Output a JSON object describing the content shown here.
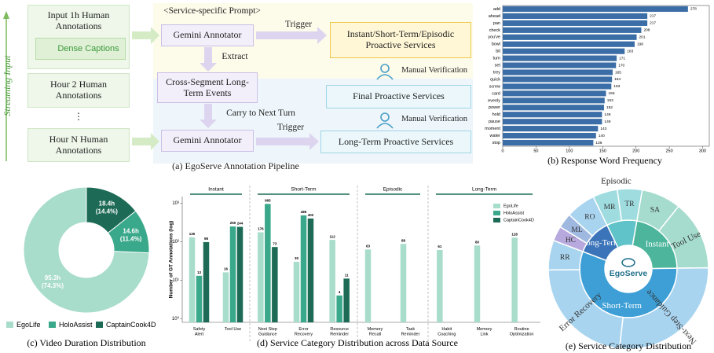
{
  "pipeline": {
    "side_label": "Streaming Input",
    "inputs": [
      "Input 1h Human Annotations",
      "Hour 2 Human Annotations",
      "⋮",
      "Hour N Human Annotations"
    ],
    "dense_captions": "Dense Captions",
    "prompt": "<Service-specific Prompt>",
    "annotator_1": "Gemini Annotator",
    "annotator_2": "Gemini Annotator",
    "trigger_1": "Trigger",
    "trigger_2": "Trigger",
    "extract": "Extract",
    "events": "Cross-Segment Long-Term Events",
    "carry": "Carry to Next Turn",
    "services_1": "Instant/Short-Term/Episodic Proactive Services",
    "verification_1": "Manual Verification",
    "final": "Final Proactive Services",
    "verification_2": "Manual Verification",
    "services_2": "Long-Term Proactive Services",
    "caption": "(a) EgoServe Annotation Pipeline"
  },
  "chart_data": [
    {
      "type": "bar",
      "orientation": "horizontal",
      "caption": "(b) Response Word Frequency",
      "categories": [
        "add",
        "ahead",
        "pan",
        "check",
        "you've",
        "bowl",
        "bit",
        "turn",
        "set",
        "trey",
        "quick",
        "screw",
        "card",
        "evenly",
        "power",
        "hold",
        "pause",
        "moment",
        "water",
        "stop"
      ],
      "values": [
        278,
        217,
        217,
        208,
        201,
        198,
        183,
        171,
        170,
        165,
        164,
        163,
        155,
        153,
        152,
        149,
        149,
        143,
        140,
        136
      ],
      "color": "#3b6ea6",
      "xlim": [
        0,
        310
      ],
      "xticks": [
        0,
        50,
        100,
        150,
        200,
        250,
        300
      ]
    },
    {
      "type": "pie",
      "donut": true,
      "caption": "(c) Video Duration Distribution",
      "categories": [
        "EgoLife",
        "HoloAssist",
        "CaptainCook4D"
      ],
      "values": [
        95.3,
        14.6,
        18.4
      ],
      "value_labels": [
        "95.3h (74.3%)",
        "14.6h (11.4%)",
        "18.4h (14.4%)"
      ],
      "colors": [
        "#a8dccb",
        "#3aa88a",
        "#1d6b56"
      ],
      "legend": "bottom"
    },
    {
      "type": "bar",
      "log_scale": true,
      "caption": "(d) Service Category Distribution across Data Source",
      "ylabel": "Number of GT Annotations (log)",
      "groups": [
        {
          "name": "Instant",
          "categories": [
            "Safety Alert",
            "Tool Use"
          ]
        },
        {
          "name": "Short-Term",
          "categories": [
            "Next Step Guidance",
            "Error Recovery",
            "Resource Reminder"
          ]
        },
        {
          "name": "Episodic",
          "categories": [
            "Memory Recall",
            "Task Reminder"
          ]
        },
        {
          "name": "Long-Term",
          "categories": [
            "Habit Coaching",
            "Memory Link",
            "Routine Optimization"
          ]
        }
      ],
      "series": [
        {
          "name": "EgoLife",
          "color": "#a8dccb",
          "values": [
            130,
            16,
            176,
            30,
            112,
            63,
            88,
            61,
            80,
            128
          ]
        },
        {
          "name": "HoloAssist",
          "color": "#3aa88a",
          "values": [
            13,
            250,
            965,
            485,
            4,
            null,
            null,
            null,
            null,
            null
          ]
        },
        {
          "name": "CaptainCook4D",
          "color": "#1d6b56",
          "values": [
            98,
            244,
            73,
            402,
            11,
            null,
            null,
            null,
            null,
            null
          ]
        }
      ],
      "ylim": [
        0.8,
        1500
      ],
      "yticks": [
        {
          "value": 1,
          "label": "10⁰"
        },
        {
          "value": 10,
          "label": "10¹"
        },
        {
          "value": 100,
          "label": "10²"
        },
        {
          "value": 1000,
          "label": "10³"
        }
      ],
      "legend": "upper right"
    },
    {
      "type": "sunburst",
      "caption": "(e) Service Category Distribution",
      "center_label": "EgoServe",
      "groups": [
        {
          "name": "Instant",
          "color": "#4cb59c",
          "children": [
            {
              "name": "SA",
              "value": 8,
              "color": "#a5dccd"
            },
            {
              "name": "Tool Use",
              "value": 14,
              "color": "#a5dccd"
            }
          ]
        },
        {
          "name": "Short-Term",
          "color": "#3d9fd6",
          "children": [
            {
              "name": "Next-Step Guidance",
              "value": 27,
              "color": "#a9d4ef"
            },
            {
              "name": "Error Recovery",
              "value": 23,
              "color": "#a9d4ef"
            },
            {
              "name": "RR",
              "value": 6,
              "color": "#a9d4ef"
            }
          ]
        },
        {
          "name": "Long-Term",
          "color": "#3b74b9",
          "children": [
            {
              "name": "HC",
              "value": 3,
              "color": "#b7a9dd"
            },
            {
              "name": "ML",
              "value": 3,
              "color": "#9fb8e0"
            },
            {
              "name": "RO",
              "value": 6,
              "color": "#a9d4ef"
            }
          ]
        },
        {
          "name": "Episodic",
          "color": "#5fc3c9",
          "children": [
            {
              "name": "MR",
              "value": 5,
              "color": "#9fdce0"
            },
            {
              "name": "TR",
              "value": 5,
              "color": "#9fdce0"
            }
          ]
        }
      ]
    }
  ]
}
